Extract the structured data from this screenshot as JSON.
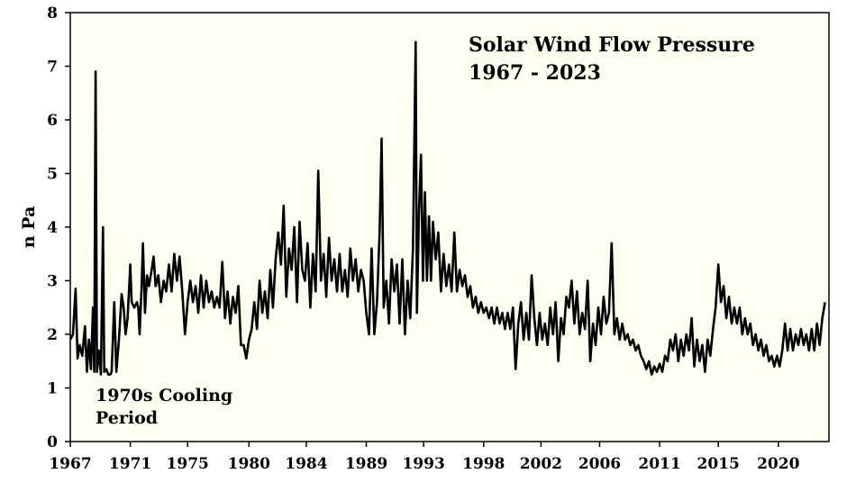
{
  "chart_data": {
    "type": "line",
    "title_line1": "Solar Wind Flow Pressure",
    "title_line2": "1967 - 2023",
    "ylabel": "n Pa",
    "annotation_line1": "1970s Cooling",
    "annotation_line2": "Period",
    "ylim": [
      0,
      8
    ],
    "xlim": [
      1967,
      2023.9
    ],
    "y_ticks": [
      0,
      1,
      2,
      3,
      4,
      5,
      6,
      7,
      8
    ],
    "x_ticks": [
      "1967",
      "1971",
      "1975",
      "1980",
      "1984",
      "1989",
      "1993",
      "1998",
      "2002",
      "2006",
      "2011",
      "2015",
      "2020"
    ],
    "x_tick_values": [
      1967,
      1971.5,
      1975.8,
      1980.4,
      1984.7,
      1989.2,
      1993.5,
      1998,
      2002.3,
      2006.7,
      2011.2,
      2015.6,
      2020.1
    ],
    "grid": false,
    "background_color": "#fffff0",
    "line_color": "#000000",
    "series": [
      {
        "points": [
          [
            1967.0,
            1.9
          ],
          [
            1967.2,
            2.0
          ],
          [
            1967.4,
            2.85
          ],
          [
            1967.55,
            1.55
          ],
          [
            1967.7,
            1.8
          ],
          [
            1967.9,
            1.6
          ],
          [
            1968.1,
            2.15
          ],
          [
            1968.25,
            1.3
          ],
          [
            1968.4,
            1.9
          ],
          [
            1968.55,
            1.35
          ],
          [
            1968.7,
            2.5
          ],
          [
            1968.8,
            1.3
          ],
          [
            1968.9,
            6.9
          ],
          [
            1969.0,
            1.3
          ],
          [
            1969.15,
            1.7
          ],
          [
            1969.3,
            1.25
          ],
          [
            1969.45,
            4.0
          ],
          [
            1969.55,
            1.3
          ],
          [
            1969.7,
            1.35
          ],
          [
            1969.85,
            1.25
          ],
          [
            1970.0,
            1.25
          ],
          [
            1970.1,
            1.3
          ],
          [
            1970.3,
            2.6
          ],
          [
            1970.45,
            1.3
          ],
          [
            1970.65,
            1.9
          ],
          [
            1970.85,
            2.75
          ],
          [
            1971.0,
            2.5
          ],
          [
            1971.15,
            2.0
          ],
          [
            1971.3,
            2.3
          ],
          [
            1971.5,
            3.3
          ],
          [
            1971.6,
            2.6
          ],
          [
            1971.8,
            2.5
          ],
          [
            1972.0,
            2.6
          ],
          [
            1972.1,
            2.5
          ],
          [
            1972.2,
            2.0
          ],
          [
            1972.35,
            2.9
          ],
          [
            1972.45,
            3.7
          ],
          [
            1972.6,
            2.4
          ],
          [
            1972.75,
            3.1
          ],
          [
            1972.9,
            2.9
          ],
          [
            1973.1,
            3.2
          ],
          [
            1973.25,
            3.45
          ],
          [
            1973.4,
            2.9
          ],
          [
            1973.6,
            3.1
          ],
          [
            1973.8,
            2.6
          ],
          [
            1974.0,
            3.0
          ],
          [
            1974.2,
            2.8
          ],
          [
            1974.4,
            3.3
          ],
          [
            1974.6,
            2.8
          ],
          [
            1974.8,
            3.5
          ],
          [
            1975.0,
            3.0
          ],
          [
            1975.2,
            3.45
          ],
          [
            1975.4,
            2.8
          ],
          [
            1975.6,
            2.0
          ],
          [
            1975.8,
            2.6
          ],
          [
            1976.0,
            3.0
          ],
          [
            1976.2,
            2.6
          ],
          [
            1976.4,
            2.9
          ],
          [
            1976.6,
            2.4
          ],
          [
            1976.8,
            3.1
          ],
          [
            1977.0,
            2.5
          ],
          [
            1977.2,
            3.0
          ],
          [
            1977.4,
            2.6
          ],
          [
            1977.6,
            2.8
          ],
          [
            1977.8,
            2.5
          ],
          [
            1978.0,
            2.7
          ],
          [
            1978.2,
            2.5
          ],
          [
            1978.4,
            3.35
          ],
          [
            1978.6,
            2.3
          ],
          [
            1978.8,
            2.8
          ],
          [
            1979.0,
            2.2
          ],
          [
            1979.2,
            2.7
          ],
          [
            1979.4,
            2.4
          ],
          [
            1979.6,
            2.9
          ],
          [
            1979.8,
            1.8
          ],
          [
            1980.0,
            1.8
          ],
          [
            1980.2,
            1.55
          ],
          [
            1980.4,
            1.9
          ],
          [
            1980.6,
            2.1
          ],
          [
            1980.8,
            2.6
          ],
          [
            1981.0,
            2.1
          ],
          [
            1981.2,
            3.0
          ],
          [
            1981.4,
            2.4
          ],
          [
            1981.6,
            2.8
          ],
          [
            1981.8,
            2.3
          ],
          [
            1982.0,
            3.2
          ],
          [
            1982.2,
            2.5
          ],
          [
            1982.4,
            3.4
          ],
          [
            1982.6,
            3.9
          ],
          [
            1982.8,
            3.3
          ],
          [
            1983.0,
            4.4
          ],
          [
            1983.2,
            2.7
          ],
          [
            1983.4,
            3.6
          ],
          [
            1983.6,
            3.2
          ],
          [
            1983.8,
            4.0
          ],
          [
            1984.0,
            2.6
          ],
          [
            1984.2,
            4.1
          ],
          [
            1984.4,
            3.2
          ],
          [
            1984.6,
            3.0
          ],
          [
            1984.8,
            3.7
          ],
          [
            1985.0,
            2.5
          ],
          [
            1985.2,
            3.5
          ],
          [
            1985.4,
            2.8
          ],
          [
            1985.6,
            5.05
          ],
          [
            1985.8,
            3.0
          ],
          [
            1986.0,
            3.5
          ],
          [
            1986.2,
            2.7
          ],
          [
            1986.4,
            3.8
          ],
          [
            1986.6,
            3.0
          ],
          [
            1986.8,
            3.4
          ],
          [
            1987.0,
            2.8
          ],
          [
            1987.2,
            3.5
          ],
          [
            1987.4,
            2.8
          ],
          [
            1987.6,
            3.2
          ],
          [
            1987.8,
            2.7
          ],
          [
            1988.0,
            3.6
          ],
          [
            1988.2,
            3.0
          ],
          [
            1988.4,
            3.4
          ],
          [
            1988.6,
            2.8
          ],
          [
            1988.8,
            3.2
          ],
          [
            1989.0,
            3.0
          ],
          [
            1989.2,
            2.4
          ],
          [
            1989.4,
            2.0
          ],
          [
            1989.6,
            3.6
          ],
          [
            1989.8,
            2.0
          ],
          [
            1990.0,
            2.6
          ],
          [
            1990.2,
            3.9
          ],
          [
            1990.35,
            5.65
          ],
          [
            1990.5,
            2.5
          ],
          [
            1990.7,
            3.0
          ],
          [
            1990.9,
            2.2
          ],
          [
            1991.1,
            3.4
          ],
          [
            1991.3,
            2.8
          ],
          [
            1991.5,
            3.3
          ],
          [
            1991.7,
            2.2
          ],
          [
            1991.9,
            3.4
          ],
          [
            1992.1,
            2.0
          ],
          [
            1992.3,
            3.0
          ],
          [
            1992.5,
            2.3
          ],
          [
            1992.7,
            3.6
          ],
          [
            1992.9,
            7.45
          ],
          [
            1993.0,
            2.4
          ],
          [
            1993.15,
            4.3
          ],
          [
            1993.3,
            5.35
          ],
          [
            1993.45,
            3.0
          ],
          [
            1993.6,
            4.65
          ],
          [
            1993.75,
            3.0
          ],
          [
            1993.9,
            4.2
          ],
          [
            1994.05,
            3.0
          ],
          [
            1994.2,
            4.1
          ],
          [
            1994.4,
            3.4
          ],
          [
            1994.6,
            3.9
          ],
          [
            1994.8,
            2.8
          ],
          [
            1995.0,
            3.5
          ],
          [
            1995.2,
            2.9
          ],
          [
            1995.4,
            3.3
          ],
          [
            1995.6,
            2.8
          ],
          [
            1995.8,
            3.9
          ],
          [
            1996.0,
            2.8
          ],
          [
            1996.2,
            3.2
          ],
          [
            1996.4,
            2.9
          ],
          [
            1996.6,
            3.1
          ],
          [
            1996.8,
            2.7
          ],
          [
            1997.0,
            2.9
          ],
          [
            1997.2,
            2.5
          ],
          [
            1997.4,
            2.7
          ],
          [
            1997.6,
            2.4
          ],
          [
            1997.8,
            2.6
          ],
          [
            1998.0,
            2.4
          ],
          [
            1998.2,
            2.5
          ],
          [
            1998.4,
            2.3
          ],
          [
            1998.6,
            2.5
          ],
          [
            1998.8,
            2.2
          ],
          [
            1999.0,
            2.5
          ],
          [
            1999.2,
            2.2
          ],
          [
            1999.4,
            2.4
          ],
          [
            1999.6,
            2.1
          ],
          [
            1999.8,
            2.4
          ],
          [
            2000.0,
            2.1
          ],
          [
            2000.2,
            2.5
          ],
          [
            2000.4,
            1.35
          ],
          [
            2000.6,
            2.2
          ],
          [
            2000.8,
            2.6
          ],
          [
            2001.0,
            1.9
          ],
          [
            2001.2,
            2.4
          ],
          [
            2001.4,
            1.9
          ],
          [
            2001.6,
            3.1
          ],
          [
            2001.8,
            2.3
          ],
          [
            2002.0,
            1.8
          ],
          [
            2002.2,
            2.4
          ],
          [
            2002.4,
            1.9
          ],
          [
            2002.6,
            2.2
          ],
          [
            2002.8,
            1.8
          ],
          [
            2003.0,
            2.5
          ],
          [
            2003.2,
            2.0
          ],
          [
            2003.4,
            2.6
          ],
          [
            2003.6,
            1.5
          ],
          [
            2003.8,
            2.3
          ],
          [
            2004.0,
            2.0
          ],
          [
            2004.2,
            2.7
          ],
          [
            2004.4,
            2.5
          ],
          [
            2004.6,
            3.0
          ],
          [
            2004.8,
            2.2
          ],
          [
            2005.0,
            2.8
          ],
          [
            2005.2,
            2.0
          ],
          [
            2005.4,
            2.4
          ],
          [
            2005.6,
            2.1
          ],
          [
            2005.8,
            3.0
          ],
          [
            2006.0,
            1.5
          ],
          [
            2006.2,
            2.2
          ],
          [
            2006.4,
            1.8
          ],
          [
            2006.6,
            2.5
          ],
          [
            2006.8,
            2.0
          ],
          [
            2007.0,
            2.7
          ],
          [
            2007.2,
            2.2
          ],
          [
            2007.4,
            2.4
          ],
          [
            2007.6,
            3.7
          ],
          [
            2007.8,
            2.0
          ],
          [
            2008.0,
            2.3
          ],
          [
            2008.2,
            1.9
          ],
          [
            2008.4,
            2.2
          ],
          [
            2008.6,
            1.9
          ],
          [
            2008.8,
            2.0
          ],
          [
            2009.0,
            1.8
          ],
          [
            2009.2,
            1.9
          ],
          [
            2009.4,
            1.7
          ],
          [
            2009.6,
            1.8
          ],
          [
            2009.8,
            1.6
          ],
          [
            2010.0,
            1.5
          ],
          [
            2010.2,
            1.35
          ],
          [
            2010.4,
            1.5
          ],
          [
            2010.6,
            1.25
          ],
          [
            2010.8,
            1.4
          ],
          [
            2011.0,
            1.3
          ],
          [
            2011.2,
            1.45
          ],
          [
            2011.4,
            1.3
          ],
          [
            2011.6,
            1.6
          ],
          [
            2011.8,
            1.5
          ],
          [
            2012.0,
            1.9
          ],
          [
            2012.2,
            1.7
          ],
          [
            2012.4,
            2.0
          ],
          [
            2012.6,
            1.5
          ],
          [
            2012.8,
            1.9
          ],
          [
            2013.0,
            1.6
          ],
          [
            2013.2,
            2.0
          ],
          [
            2013.4,
            1.7
          ],
          [
            2013.6,
            2.3
          ],
          [
            2013.8,
            1.4
          ],
          [
            2014.0,
            1.9
          ],
          [
            2014.2,
            1.5
          ],
          [
            2014.4,
            1.8
          ],
          [
            2014.6,
            1.3
          ],
          [
            2014.8,
            1.9
          ],
          [
            2015.0,
            1.6
          ],
          [
            2015.2,
            2.1
          ],
          [
            2015.4,
            2.5
          ],
          [
            2015.6,
            3.3
          ],
          [
            2015.8,
            2.6
          ],
          [
            2016.0,
            2.9
          ],
          [
            2016.2,
            2.3
          ],
          [
            2016.4,
            2.7
          ],
          [
            2016.6,
            2.2
          ],
          [
            2016.8,
            2.5
          ],
          [
            2017.0,
            2.2
          ],
          [
            2017.2,
            2.5
          ],
          [
            2017.4,
            2.0
          ],
          [
            2017.6,
            2.3
          ],
          [
            2017.8,
            2.0
          ],
          [
            2018.0,
            2.2
          ],
          [
            2018.2,
            1.8
          ],
          [
            2018.4,
            2.0
          ],
          [
            2018.6,
            1.7
          ],
          [
            2018.8,
            1.9
          ],
          [
            2019.0,
            1.6
          ],
          [
            2019.2,
            1.8
          ],
          [
            2019.4,
            1.5
          ],
          [
            2019.6,
            1.6
          ],
          [
            2019.8,
            1.4
          ],
          [
            2020.0,
            1.6
          ],
          [
            2020.2,
            1.4
          ],
          [
            2020.4,
            1.7
          ],
          [
            2020.6,
            2.2
          ],
          [
            2020.8,
            1.7
          ],
          [
            2021.0,
            2.1
          ],
          [
            2021.2,
            1.7
          ],
          [
            2021.4,
            2.0
          ],
          [
            2021.6,
            1.8
          ],
          [
            2021.8,
            2.1
          ],
          [
            2022.0,
            1.8
          ],
          [
            2022.2,
            2.0
          ],
          [
            2022.4,
            1.7
          ],
          [
            2022.6,
            2.1
          ],
          [
            2022.8,
            1.7
          ],
          [
            2023.0,
            2.2
          ],
          [
            2023.2,
            1.8
          ],
          [
            2023.4,
            2.3
          ],
          [
            2023.6,
            2.6
          ]
        ]
      }
    ]
  }
}
